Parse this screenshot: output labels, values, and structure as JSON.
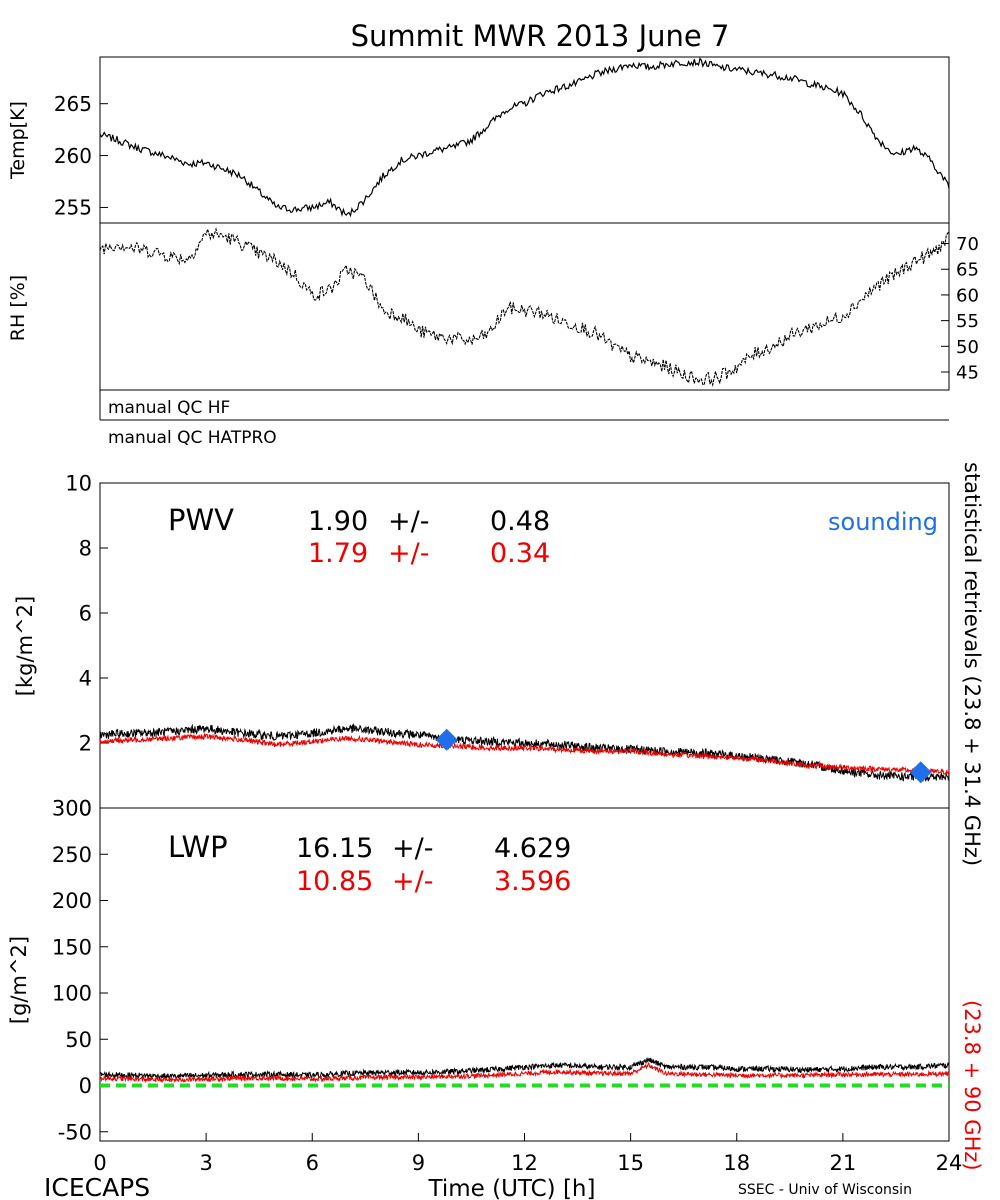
{
  "title": "Summit MWR 2013 June  7",
  "footer": {
    "left": "ICECAPS",
    "xlabel": "Time (UTC) [h]",
    "right": "SSEC - Univ of Wisconsin"
  },
  "side_labels": {
    "black": "statistical  retrievals  (23.8 + 31.4 GHz)",
    "red": "(23.8 + 90 GHz)"
  },
  "qc": {
    "hf": "manual QC HF",
    "hatpro": "manual QC HATPRO"
  },
  "colors": {
    "black": "#000000",
    "red": "#ee0000",
    "blue": "#1f6fe8",
    "green": "#22dd22"
  },
  "chart_data": [
    {
      "id": "temp",
      "type": "line",
      "ylabel": "Temp[K]",
      "xlim": [
        0,
        24
      ],
      "ylim": [
        253.5,
        269.5
      ],
      "yticks": [
        255,
        260,
        265
      ],
      "x": [
        0,
        0.5,
        1,
        1.5,
        2,
        2.5,
        3,
        3.5,
        4,
        4.5,
        5,
        5.5,
        6,
        6.5,
        7,
        7.5,
        8,
        8.5,
        9,
        9.5,
        10,
        10.5,
        11,
        11.5,
        12,
        12.5,
        13,
        13.5,
        14,
        14.5,
        15,
        15.5,
        16,
        16.5,
        17,
        17.5,
        18,
        18.5,
        19,
        19.5,
        20,
        20.5,
        21,
        21.5,
        22,
        22.5,
        23,
        23.5,
        24
      ],
      "values": [
        262.0,
        261.5,
        260.8,
        260.3,
        259.8,
        259.2,
        259.3,
        258.7,
        258.0,
        256.5,
        255.0,
        254.8,
        255.0,
        255.5,
        254.2,
        255.8,
        258.0,
        259.5,
        260.0,
        260.5,
        260.8,
        261.5,
        263.0,
        264.5,
        265.0,
        266.0,
        266.5,
        267.0,
        267.8,
        268.3,
        268.8,
        268.5,
        268.8,
        269.0,
        269.0,
        268.5,
        268.3,
        268.0,
        267.8,
        267.5,
        267.0,
        266.5,
        266.0,
        264.0,
        261.5,
        260.0,
        260.8,
        259.5,
        257.0
      ]
    },
    {
      "id": "rh",
      "type": "line",
      "ylabel": "RH [%]",
      "xlim": [
        0,
        24
      ],
      "ylim": [
        41.5,
        74
      ],
      "yticks": [
        45,
        50,
        55,
        60,
        65,
        70
      ],
      "x": [
        0,
        0.5,
        1,
        1.5,
        2,
        2.5,
        3,
        3.5,
        4,
        4.5,
        5,
        5.5,
        6,
        6.5,
        7,
        7.5,
        8,
        8.5,
        9,
        9.5,
        10,
        10.5,
        11,
        11.5,
        12,
        12.5,
        13,
        13.5,
        14,
        14.5,
        15,
        15.5,
        16,
        16.5,
        17,
        17.5,
        18,
        18.5,
        19,
        19.5,
        20,
        20.5,
        21,
        21.5,
        22,
        22.5,
        23,
        23.5,
        24
      ],
      "values": [
        69.0,
        70.0,
        69.0,
        68.5,
        67.5,
        67.0,
        72.0,
        71.5,
        70.0,
        68.0,
        66.5,
        64.0,
        60.0,
        61.0,
        65.0,
        63.0,
        57.0,
        56.0,
        53.0,
        52.0,
        51.5,
        51.0,
        52.5,
        57.5,
        57.0,
        56.5,
        55.0,
        54.0,
        52.5,
        50.0,
        48.0,
        47.0,
        46.0,
        44.5,
        43.5,
        44.0,
        46.0,
        48.5,
        50.0,
        52.0,
        53.5,
        54.5,
        56.0,
        59.0,
        62.0,
        64.0,
        66.5,
        68.0,
        71.0
      ]
    },
    {
      "id": "pwv",
      "type": "line",
      "title": "PWV",
      "ylabel": "[kg/m^2]",
      "xlim": [
        0,
        24
      ],
      "ylim": [
        0,
        10
      ],
      "yticks": [
        0,
        2,
        4,
        6,
        8,
        10
      ],
      "stats": [
        {
          "value": "1.90",
          "pm": "+/-",
          "err": "0.48"
        },
        {
          "value": "1.79",
          "pm": "+/-",
          "err": "0.34"
        }
      ],
      "legend": "sounding",
      "x": [
        0,
        1,
        2,
        3,
        4,
        5,
        6,
        7,
        8,
        9,
        10,
        11,
        12,
        13,
        14,
        15,
        16,
        17,
        18,
        19,
        20,
        21,
        22,
        23,
        24
      ],
      "series": [
        {
          "values": [
            2.25,
            2.3,
            2.35,
            2.45,
            2.3,
            2.2,
            2.3,
            2.45,
            2.35,
            2.25,
            2.1,
            2.05,
            2.0,
            1.95,
            1.85,
            1.8,
            1.75,
            1.7,
            1.6,
            1.5,
            1.35,
            1.15,
            1.0,
            0.95,
            0.95
          ],
          "noise": 0.13
        },
        {
          "values": [
            2.05,
            2.1,
            2.15,
            2.2,
            2.1,
            1.95,
            2.05,
            2.15,
            2.05,
            1.95,
            1.9,
            1.85,
            1.85,
            1.8,
            1.75,
            1.75,
            1.65,
            1.6,
            1.55,
            1.45,
            1.3,
            1.25,
            1.2,
            1.15,
            1.1
          ],
          "noise": 0.08
        }
      ],
      "soundings": [
        {
          "x": 9.8,
          "y": 2.1
        },
        {
          "x": 23.2,
          "y": 1.1
        }
      ]
    },
    {
      "id": "lwp",
      "type": "line",
      "title": "LWP",
      "ylabel": "[g/m^2]",
      "xlabel": "Time (UTC) [h]",
      "xlim": [
        0,
        24
      ],
      "xticks": [
        0,
        3,
        6,
        9,
        12,
        15,
        18,
        21,
        24
      ],
      "ylim": [
        -60,
        300
      ],
      "yticks": [
        -50,
        0,
        50,
        100,
        150,
        200,
        250,
        300
      ],
      "stats": [
        {
          "value": "16.15",
          "pm": "+/-",
          "err": "4.629"
        },
        {
          "value": "10.85",
          "pm": "+/-",
          "err": "3.596"
        }
      ],
      "x": [
        0,
        1,
        2,
        3,
        4,
        5,
        6,
        7,
        8,
        9,
        10,
        11,
        12,
        13,
        14,
        15,
        15.5,
        16,
        17,
        18,
        19,
        20,
        21,
        22,
        23,
        24
      ],
      "series": [
        {
          "values": [
            12,
            11,
            10,
            11,
            12,
            12,
            11,
            13,
            14,
            14,
            15,
            17,
            20,
            22,
            20,
            20,
            28,
            20,
            20,
            18,
            18,
            17,
            18,
            20,
            20,
            22
          ],
          "noise": 3
        },
        {
          "values": [
            8,
            7,
            6,
            7,
            8,
            8,
            7,
            8,
            9,
            9,
            10,
            11,
            13,
            15,
            13,
            13,
            22,
            13,
            12,
            11,
            11,
            11,
            12,
            12,
            12,
            13
          ],
          "noise": 2.5
        }
      ],
      "reference_line": 0
    }
  ]
}
